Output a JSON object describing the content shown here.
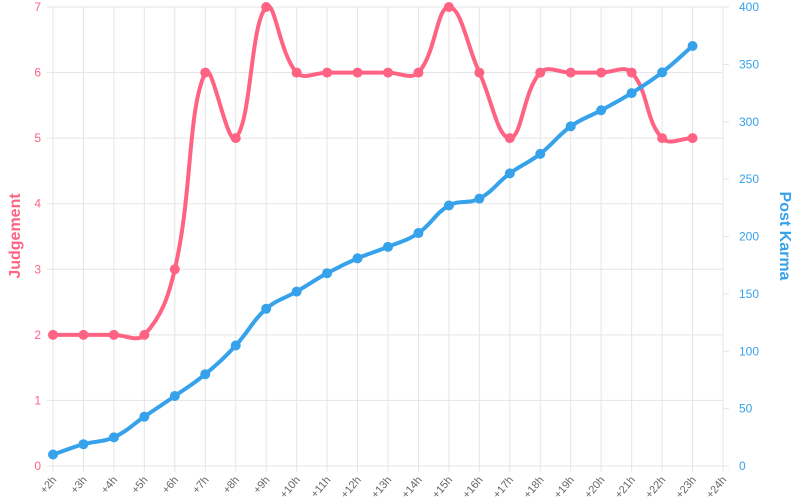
{
  "chart_data": {
    "type": "line",
    "categories": [
      "+2h",
      "+3h",
      "+4h",
      "+5h",
      "+6h",
      "+7h",
      "+8h",
      "+9h",
      "+10h",
      "+11h",
      "+12h",
      "+13h",
      "+14h",
      "+15h",
      "+16h",
      "+17h",
      "+18h",
      "+19h",
      "+20h",
      "+21h",
      "+22h",
      "+23h",
      "+24h"
    ],
    "ylabel": "Judgement",
    "y2label": "Post Karma",
    "ylim": [
      0,
      7
    ],
    "yticks": [
      0,
      1,
      2,
      3,
      4,
      5,
      6,
      7
    ],
    "y2lim": [
      0,
      400
    ],
    "y2ticks": [
      0,
      50,
      100,
      150,
      200,
      250,
      300,
      350,
      400
    ],
    "grid": true,
    "series": [
      {
        "name": "Judgement",
        "color": "#ff6384",
        "axis": "y",
        "values": [
          2,
          2,
          2,
          2,
          3,
          6,
          5,
          7,
          6,
          6,
          6,
          6,
          6,
          7,
          6,
          5,
          6,
          6,
          6,
          6,
          5,
          5,
          null
        ]
      },
      {
        "name": "Post Karma",
        "color": "#36a2eb",
        "axis": "y2",
        "values": [
          10,
          19,
          25,
          43,
          61,
          80,
          105,
          137,
          152,
          168,
          181,
          191,
          203,
          227,
          233,
          255,
          272,
          296,
          310,
          325,
          343,
          366,
          null
        ]
      }
    ]
  }
}
